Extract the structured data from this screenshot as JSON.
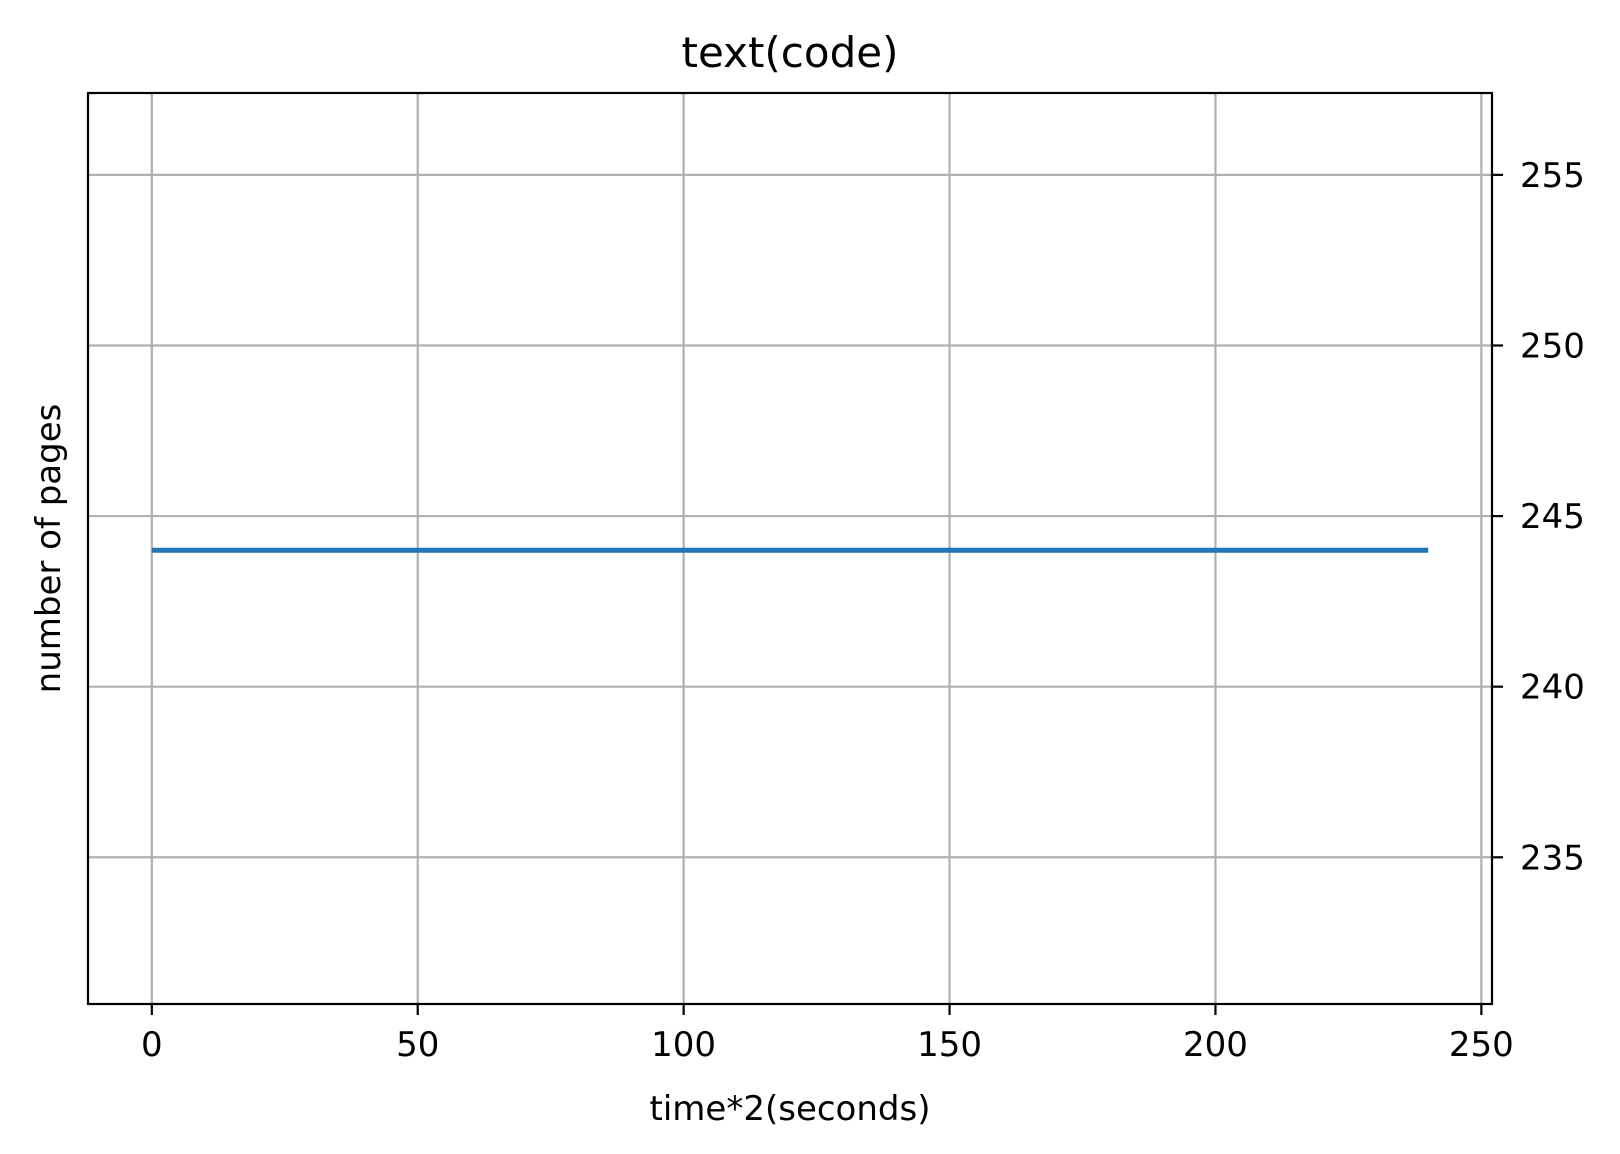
{
  "chart_data": {
    "type": "line",
    "title": "text(code)",
    "xlabel": "time*2(seconds)",
    "ylabel": "number of pages",
    "y_axis_side": "right",
    "xlim": [
      -12,
      252
    ],
    "ylim": [
      230.7,
      257.4
    ],
    "x_ticks": [
      0,
      50,
      100,
      150,
      200,
      250
    ],
    "y_ticks": [
      235,
      240,
      245,
      250,
      255
    ],
    "grid": true,
    "legend": "none",
    "series": [
      {
        "color": "#1f77b4",
        "x": [
          0,
          240
        ],
        "y": [
          244,
          244
        ]
      }
    ]
  }
}
